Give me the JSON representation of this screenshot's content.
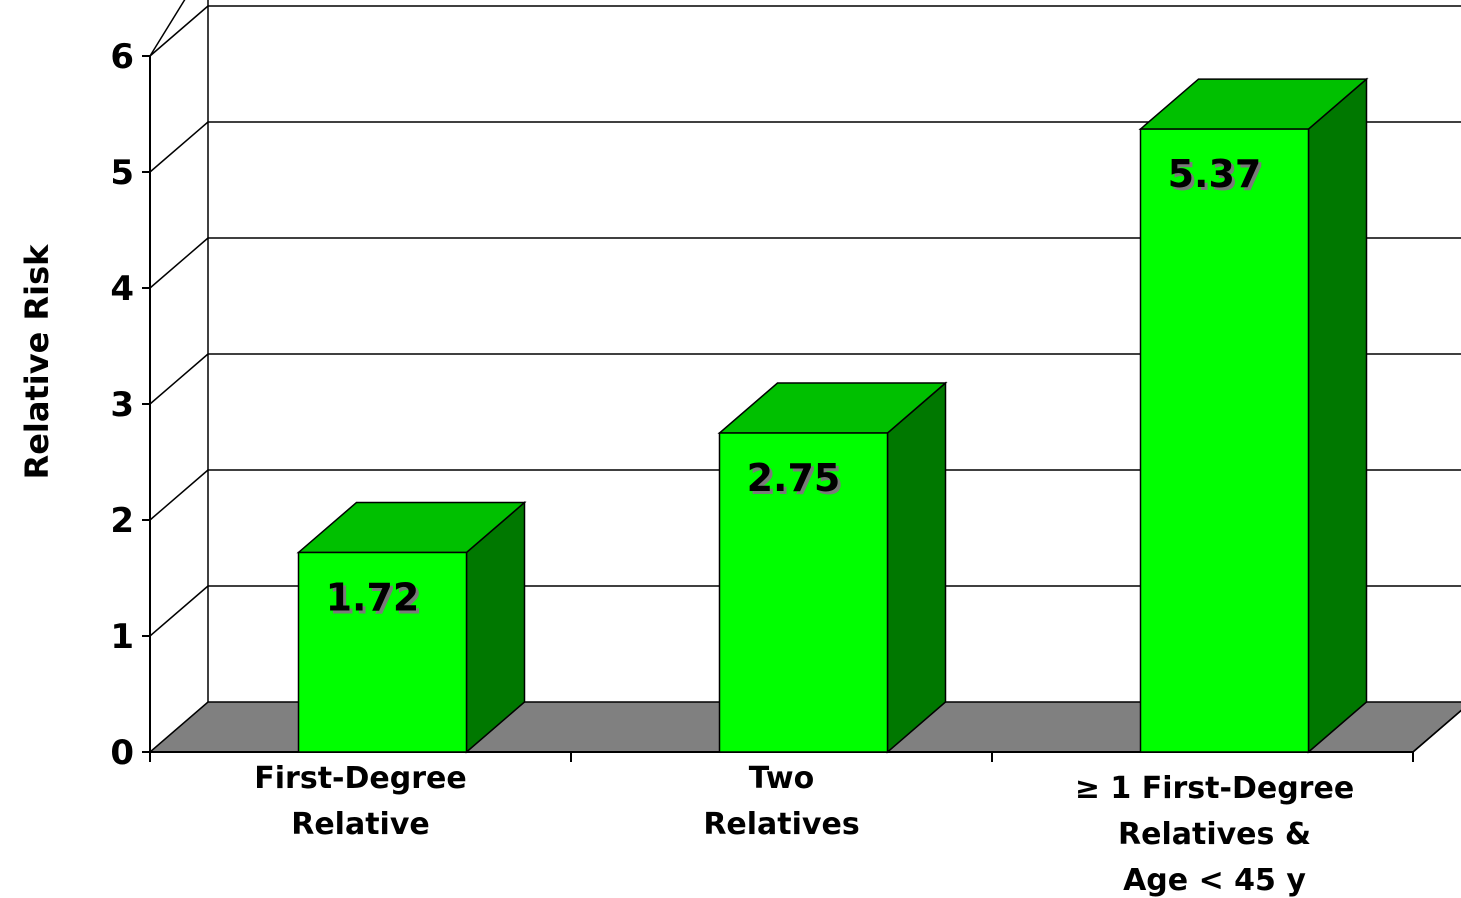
{
  "chart_data": {
    "type": "bar",
    "style": "3d-column",
    "categories": [
      [
        "First-Degree",
        "Relative"
      ],
      [
        "Two",
        "Relatives"
      ],
      [
        "≥ 1 First-Degree",
        "Relatives &",
        "Age < 45 y"
      ]
    ],
    "values": [
      1.72,
      2.75,
      5.37
    ],
    "value_labels": [
      "1.72",
      "2.75",
      "5.37"
    ],
    "ylabel": "Relative Risk",
    "ylim": [
      0,
      6
    ],
    "yticks": [
      "0",
      "1",
      "2",
      "3",
      "4",
      "5",
      "6"
    ],
    "grid": true,
    "legend": "none",
    "colors": {
      "bar_front": "#00ff00",
      "bar_top": "#00c000",
      "bar_side": "#007800",
      "floor": "#808080",
      "grid": "#000000"
    }
  }
}
